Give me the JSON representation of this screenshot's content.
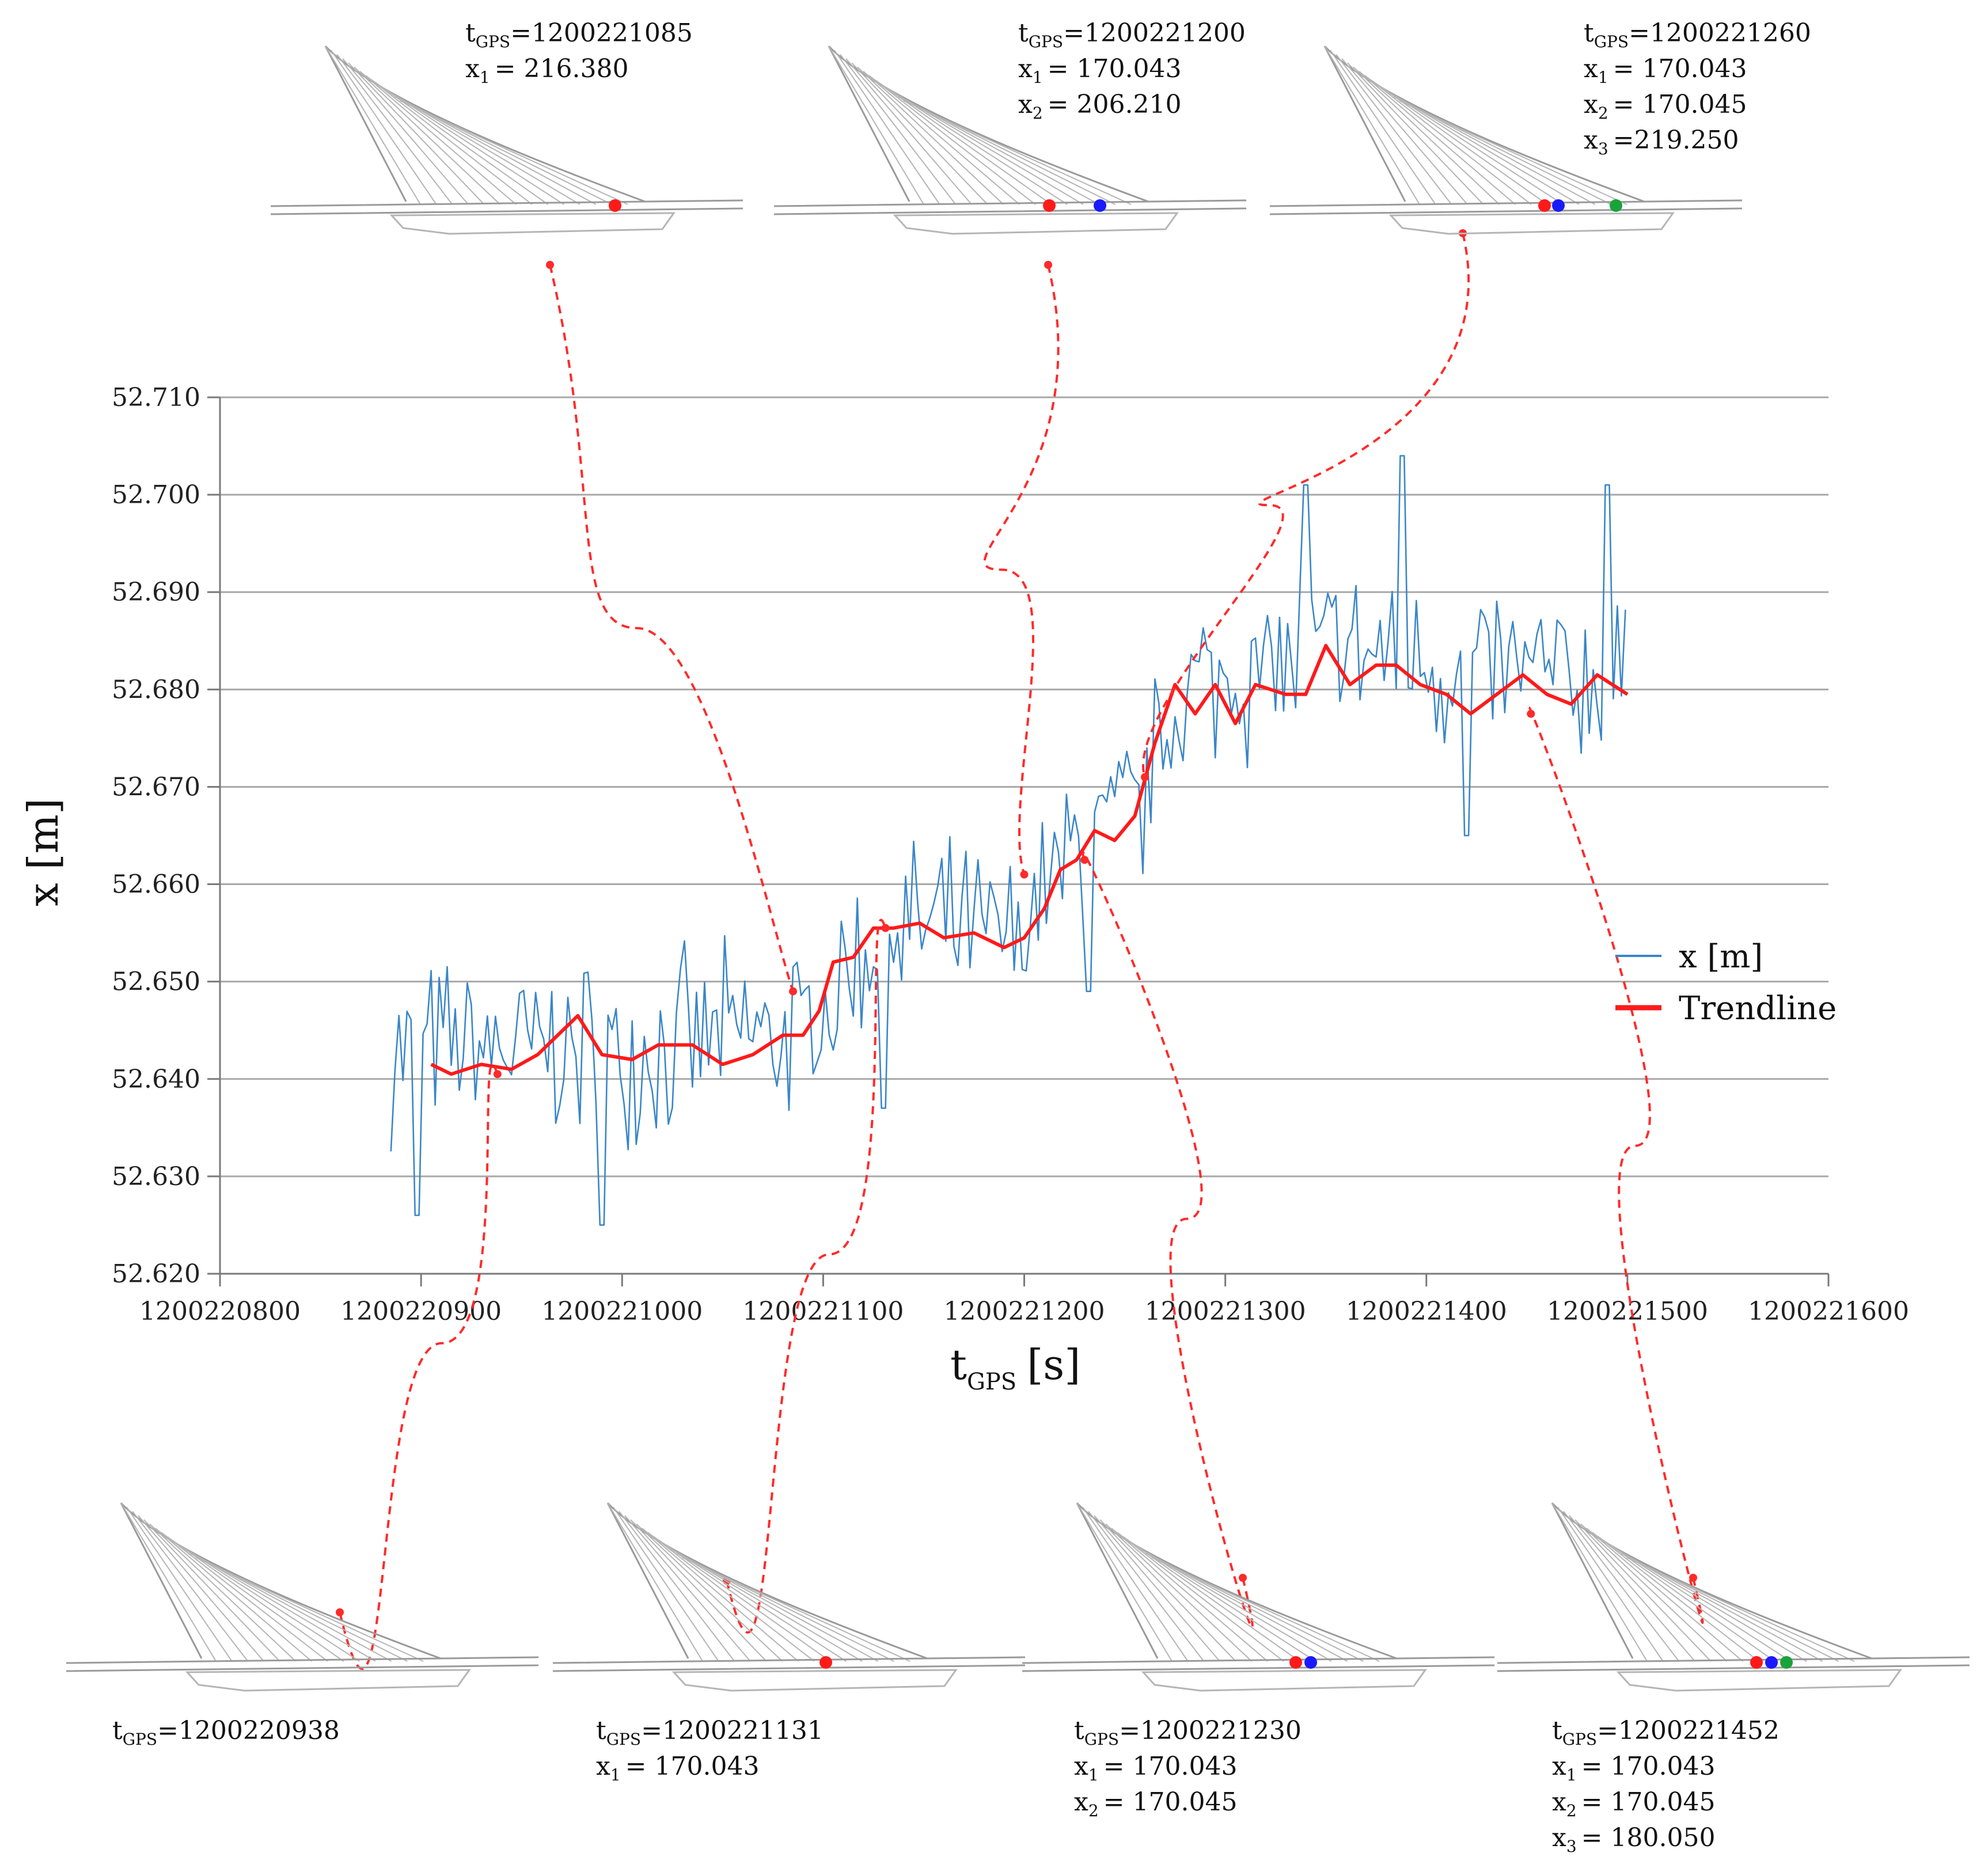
{
  "chart_data": {
    "type": "line",
    "xlabel": "t",
    "xlabel_sub": "GPS",
    "xlabel_unit": "[s]",
    "ylabel": "x [m]",
    "xlim": [
      1200220800,
      1200221600
    ],
    "ylim": [
      52.62,
      52.71
    ],
    "x_ticks": [
      "1200220800",
      "1200220900",
      "1200221000",
      "1200221100",
      "1200221200",
      "1200221300",
      "1200221400",
      "1200221500",
      "1200221600"
    ],
    "y_ticks": [
      "52.620",
      "52.630",
      "52.640",
      "52.650",
      "52.660",
      "52.670",
      "52.680",
      "52.690",
      "52.700",
      "52.710"
    ],
    "grid": "horizontal",
    "legend_position": "right",
    "series": [
      {
        "name": "x [m]",
        "color": "#3a86c8",
        "style": "noisy",
        "x_range": [
          1200220885,
          1200221500
        ],
        "step": 2,
        "noise_amplitude": 0.011,
        "anchors": [
          {
            "x": 1200220885,
            "y": 52.643
          },
          {
            "x": 1200221000,
            "y": 52.643
          },
          {
            "x": 1200221095,
            "y": 52.645
          },
          {
            "x": 1200221130,
            "y": 52.656
          },
          {
            "x": 1200221195,
            "y": 52.654
          },
          {
            "x": 1200221230,
            "y": 52.665
          },
          {
            "x": 1200221255,
            "y": 52.667
          },
          {
            "x": 1200221280,
            "y": 52.68
          },
          {
            "x": 1200221350,
            "y": 52.684
          },
          {
            "x": 1200221500,
            "y": 52.68
          }
        ],
        "spikes": [
          {
            "x": 1200220898,
            "y": 52.626
          },
          {
            "x": 1200220990,
            "y": 52.625
          },
          {
            "x": 1200221130,
            "y": 52.637
          },
          {
            "x": 1200221232,
            "y": 52.649
          },
          {
            "x": 1200221340,
            "y": 52.701
          },
          {
            "x": 1200221388,
            "y": 52.704
          },
          {
            "x": 1200221490,
            "y": 52.701
          },
          {
            "x": 1200221420,
            "y": 52.665
          }
        ]
      },
      {
        "name": "Trendline",
        "color": "#ff1a1a",
        "style": "trend",
        "points": [
          [
            1200220905,
            52.6415
          ],
          [
            1200220915,
            52.6405
          ],
          [
            1200220930,
            52.6415
          ],
          [
            1200220945,
            52.641
          ],
          [
            1200220958,
            52.6425
          ],
          [
            1200220968,
            52.6445
          ],
          [
            1200220978,
            52.6465
          ],
          [
            1200220990,
            52.6425
          ],
          [
            1200221005,
            52.642
          ],
          [
            1200221018,
            52.6435
          ],
          [
            1200221035,
            52.6435
          ],
          [
            1200221050,
            52.6415
          ],
          [
            1200221065,
            52.6425
          ],
          [
            1200221080,
            52.6445
          ],
          [
            1200221090,
            52.6445
          ],
          [
            1200221098,
            52.647
          ],
          [
            1200221105,
            52.652
          ],
          [
            1200221115,
            52.6525
          ],
          [
            1200221125,
            52.6555
          ],
          [
            1200221135,
            52.6555
          ],
          [
            1200221148,
            52.656
          ],
          [
            1200221160,
            52.6545
          ],
          [
            1200221175,
            52.655
          ],
          [
            1200221190,
            52.6535
          ],
          [
            1200221200,
            52.6545
          ],
          [
            1200221210,
            52.6575
          ],
          [
            1200221218,
            52.6615
          ],
          [
            1200221226,
            52.6625
          ],
          [
            1200221235,
            52.6655
          ],
          [
            1200221245,
            52.6645
          ],
          [
            1200221255,
            52.667
          ],
          [
            1200221265,
            52.6745
          ],
          [
            1200221275,
            52.6805
          ],
          [
            1200221285,
            52.6775
          ],
          [
            1200221295,
            52.6805
          ],
          [
            1200221305,
            52.6765
          ],
          [
            1200221315,
            52.6805
          ],
          [
            1200221330,
            52.6795
          ],
          [
            1200221340,
            52.6795
          ],
          [
            1200221350,
            52.6845
          ],
          [
            1200221362,
            52.6805
          ],
          [
            1200221375,
            52.6825
          ],
          [
            1200221385,
            52.6825
          ],
          [
            1200221397,
            52.6805
          ],
          [
            1200221410,
            52.6795
          ],
          [
            1200221422,
            52.6775
          ],
          [
            1200221435,
            52.6795
          ],
          [
            1200221448,
            52.6815
          ],
          [
            1200221460,
            52.6795
          ],
          [
            1200221472,
            52.6785
          ],
          [
            1200221485,
            52.6815
          ],
          [
            1200221500,
            52.6795
          ]
        ]
      }
    ],
    "annotations": [
      {
        "panel": "top-left",
        "target_x": 1200221085,
        "target_y": 52.649,
        "label_t": "t",
        "label_t_sub": "GPS",
        "label_t_val": "=1200221085",
        "lines": [
          {
            "name": "x",
            "sub": "1",
            "val": "= 216.380"
          }
        ]
      },
      {
        "panel": "top-center",
        "target_x": 1200221200,
        "target_y": 52.661,
        "label_t": "t",
        "label_t_sub": "GPS",
        "label_t_val": "=1200221200",
        "lines": [
          {
            "name": "x",
            "sub": "1",
            "val": "= 170.043"
          },
          {
            "name": "x",
            "sub": "2",
            "val": "= 206.210"
          }
        ]
      },
      {
        "panel": "top-right",
        "target_x": 1200221260,
        "target_y": 52.671,
        "label_t": "t",
        "label_t_sub": "GPS",
        "label_t_val": "=1200221260",
        "lines": [
          {
            "name": "x",
            "sub": "1",
            "val": "= 170.043"
          },
          {
            "name": "x",
            "sub": "2",
            "val": "= 170.045"
          },
          {
            "name": "x",
            "sub": "3",
            "val": "=219.250"
          }
        ]
      },
      {
        "panel": "bottom-1",
        "target_x": 1200220938,
        "target_y": 52.6405,
        "label_t": "t",
        "label_t_sub": "GPS",
        "label_t_val": "=1200220938",
        "lines": []
      },
      {
        "panel": "bottom-2",
        "target_x": 1200221131,
        "target_y": 52.6555,
        "label_t": "t",
        "label_t_sub": "GPS",
        "label_t_val": "=1200221131",
        "lines": [
          {
            "name": "x",
            "sub": "1",
            "val": "= 170.043"
          }
        ]
      },
      {
        "panel": "bottom-3",
        "target_x": 1200221230,
        "target_y": 52.6625,
        "label_t": "t",
        "label_t_sub": "GPS",
        "label_t_val": "=1200221230",
        "lines": [
          {
            "name": "x",
            "sub": "1",
            "val": "= 170.043"
          },
          {
            "name": "x",
            "sub": "2",
            "val": "= 170.045"
          }
        ]
      },
      {
        "panel": "bottom-4",
        "target_x": 1200221452,
        "target_y": 52.6775,
        "label_t": "t",
        "label_t_sub": "GPS",
        "label_t_val": "=1200221452",
        "lines": [
          {
            "name": "x",
            "sub": "1",
            "val": "= 170.043"
          },
          {
            "name": "x",
            "sub": "2",
            "val": "= 170.045"
          },
          {
            "name": "x",
            "sub": "3",
            "val": "= 180.050"
          }
        ]
      }
    ],
    "marker_colors": {
      "sensor_1": "#ff1a1a",
      "sensor_2": "#1a1aff",
      "sensor_3": "#1aa33a"
    }
  }
}
